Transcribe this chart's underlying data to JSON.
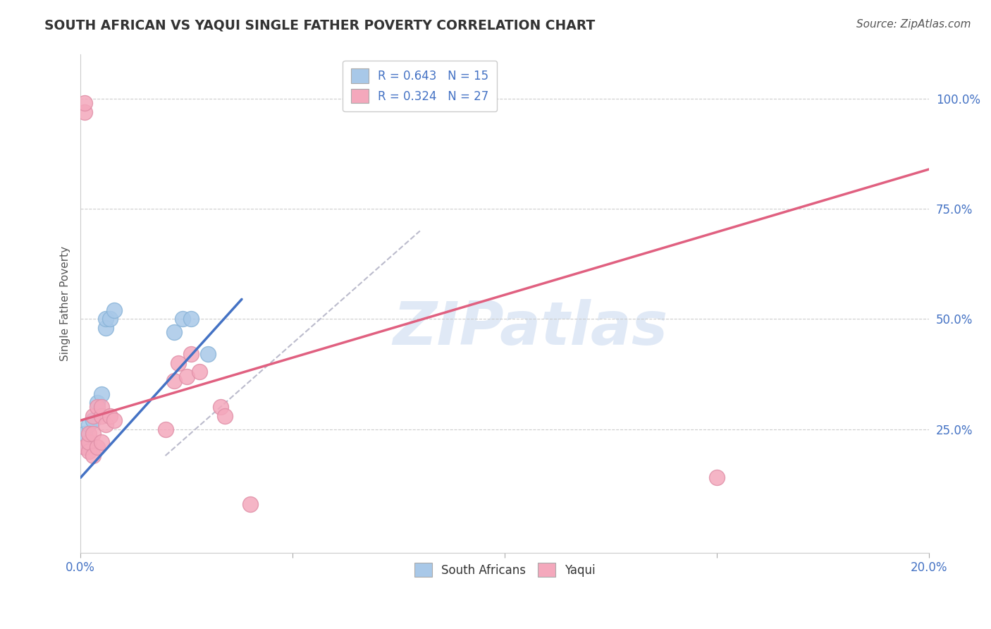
{
  "title": "SOUTH AFRICAN VS YAQUI SINGLE FATHER POVERTY CORRELATION CHART",
  "source": "Source: ZipAtlas.com",
  "ylabel": "Single Father Poverty",
  "xlim": [
    0.0,
    0.2
  ],
  "ylim": [
    -0.03,
    1.1
  ],
  "ytick_labels": [
    "25.0%",
    "50.0%",
    "75.0%",
    "100.0%"
  ],
  "ytick_positions": [
    0.25,
    0.5,
    0.75,
    1.0
  ],
  "legend_blue_label": "R = 0.643   N = 15",
  "legend_pink_label": "R = 0.324   N = 27",
  "legend_bottom_blue": "South Africans",
  "legend_bottom_pink": "Yaqui",
  "watermark": "ZIPatlas",
  "blue_color": "#A8C8E8",
  "pink_color": "#F4A8BC",
  "blue_line_color": "#4472C4",
  "pink_line_color": "#E06080",
  "dashed_line_color": "#BBBBCC",
  "blue_line_x": [
    0.0,
    0.038
  ],
  "blue_line_y": [
    0.14,
    0.545
  ],
  "pink_line_x": [
    0.0,
    0.2
  ],
  "pink_line_y": [
    0.27,
    0.84
  ],
  "dashed_line_x": [
    0.02,
    0.08
  ],
  "dashed_line_y": [
    0.19,
    0.7
  ],
  "south_african_x": [
    0.001,
    0.001,
    0.002,
    0.002,
    0.003,
    0.004,
    0.005,
    0.006,
    0.006,
    0.007,
    0.008,
    0.022,
    0.024,
    0.026,
    0.03
  ],
  "south_african_y": [
    0.21,
    0.24,
    0.22,
    0.26,
    0.27,
    0.31,
    0.33,
    0.48,
    0.5,
    0.5,
    0.52,
    0.47,
    0.5,
    0.5,
    0.42
  ],
  "yaqui_x": [
    0.001,
    0.001,
    0.001,
    0.002,
    0.002,
    0.002,
    0.003,
    0.003,
    0.003,
    0.004,
    0.004,
    0.005,
    0.005,
    0.005,
    0.006,
    0.007,
    0.008,
    0.02,
    0.022,
    0.023,
    0.025,
    0.026,
    0.028,
    0.033,
    0.034,
    0.15,
    0.04
  ],
  "yaqui_y": [
    0.97,
    0.99,
    0.21,
    0.2,
    0.22,
    0.24,
    0.19,
    0.24,
    0.28,
    0.21,
    0.3,
    0.22,
    0.28,
    0.3,
    0.26,
    0.28,
    0.27,
    0.25,
    0.36,
    0.4,
    0.37,
    0.42,
    0.38,
    0.3,
    0.28,
    0.14,
    0.08
  ]
}
